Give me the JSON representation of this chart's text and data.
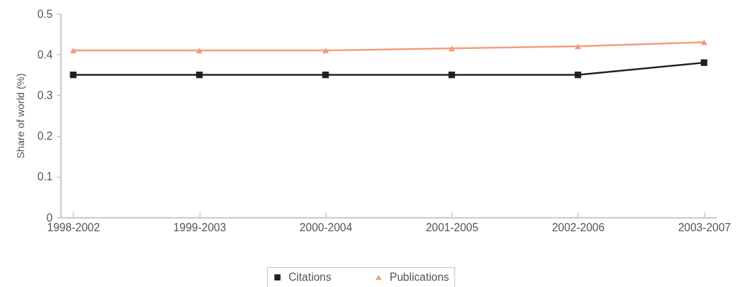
{
  "chart_data": {
    "type": "line",
    "ylabel": "Share of world (%)",
    "categories": [
      "1998-2002",
      "1999-2003",
      "2000-2004",
      "2001-2005",
      "2002-2006",
      "2003-2007"
    ],
    "series": [
      {
        "name": "Citations",
        "color": "#231f20",
        "marker": "square",
        "values": [
          0.35,
          0.35,
          0.35,
          0.35,
          0.35,
          0.38
        ]
      },
      {
        "name": "Publications",
        "color": "#f09e78",
        "marker": "triangle",
        "values": [
          0.41,
          0.41,
          0.41,
          0.415,
          0.42,
          0.43
        ]
      }
    ],
    "ylim": [
      0,
      0.5
    ],
    "yticks": [
      0,
      0.1,
      0.2,
      0.3,
      0.4,
      0.5
    ],
    "legend": "bottom"
  }
}
